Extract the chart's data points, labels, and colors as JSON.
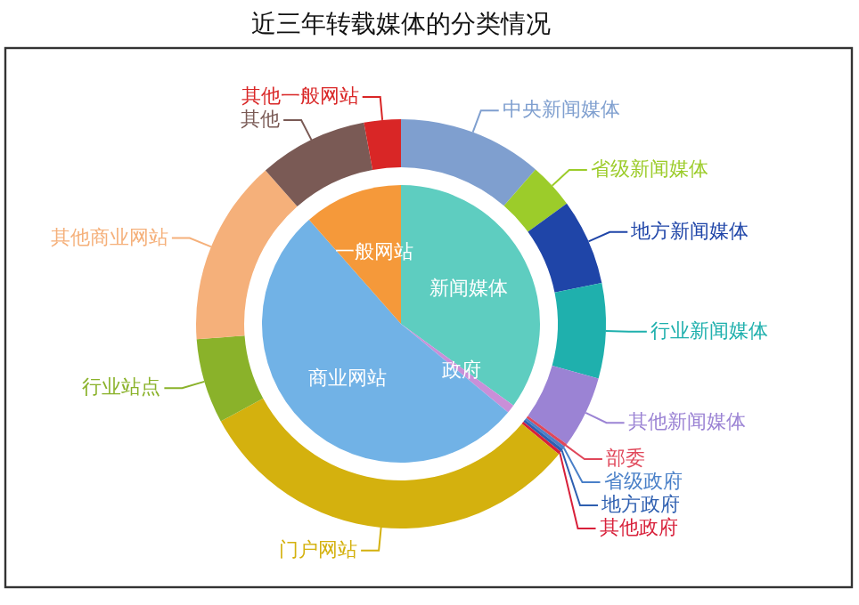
{
  "chart_data": [
    {
      "type": "pie",
      "title": "近三年转载媒体的分类情况",
      "categories": [
        "新闻媒体",
        "政府",
        "商业网站",
        "一般网站"
      ],
      "values": [
        35,
        1,
        52.5,
        11.5
      ],
      "colors": [
        "#5ecdc0",
        "#c98fd8",
        "#71b2e6",
        "#f5993a"
      ]
    },
    {
      "type": "donut",
      "categories": [
        "中央新闻媒体",
        "省级新闻媒体",
        "地方新闻媒体",
        "行业新闻媒体",
        "其他新闻媒体",
        "部委",
        "省级政府",
        "地方政府",
        "其他政府",
        "门户网站",
        "行业站点",
        "其他商业网站",
        "其他",
        "其他一般网站"
      ],
      "values": [
        11.4,
        3.6,
        6.8,
        7.5,
        5.7,
        0.25,
        0.25,
        0.25,
        0.25,
        31.1,
        6.7,
        14.7,
        8.6,
        2.9
      ],
      "colors": [
        "#7f9fcf",
        "#9ccc2a",
        "#1f45a8",
        "#1fb0ad",
        "#9b83d4",
        "#e0475a",
        "#4a80c8",
        "#2e5fb0",
        "#d8203a",
        "#d4b10e",
        "#8ab22a",
        "#f5b07a",
        "#7a5a55",
        "#d92626"
      ]
    }
  ]
}
